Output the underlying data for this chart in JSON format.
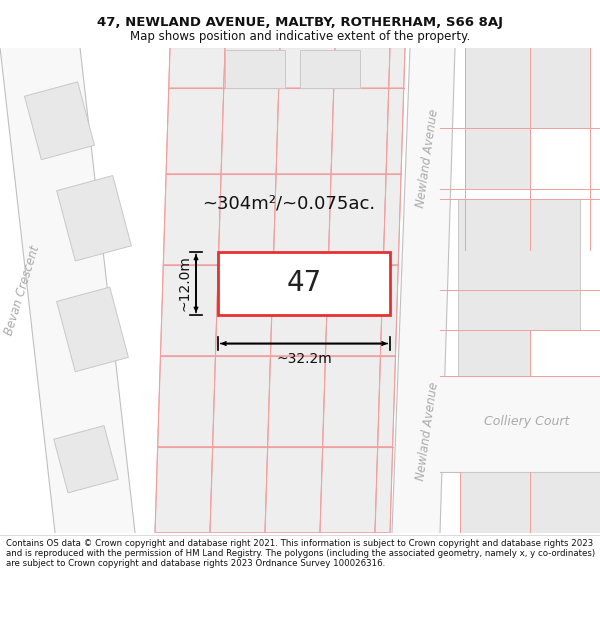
{
  "title_line1": "47, NEWLAND AVENUE, MALTBY, ROTHERHAM, S66 8AJ",
  "title_line2": "Map shows position and indicative extent of the property.",
  "footer_text": "Contains OS data © Crown copyright and database right 2021. This information is subject to Crown copyright and database rights 2023 and is reproduced with the permission of HM Land Registry. The polygons (including the associated geometry, namely x, y co-ordinates) are subject to Crown copyright and database rights 2023 Ordnance Survey 100026316.",
  "label_area": "~304m²/~0.075ac.",
  "label_number": "47",
  "label_width": "~32.2m",
  "label_height": "~12.0m",
  "street_name_newland_top": "Newland Avenue",
  "street_name_newland_bot": "Newland Avenue",
  "street_name_colliery": "Colliery Court",
  "street_name_bevan": "Bevan Crescent",
  "bg": "#ffffff",
  "bldg_fill": "#e8e8e8",
  "bldg_edge": "#c8c8c8",
  "street_line": "#f0a0a0",
  "plot_red": "#e83030",
  "road_gray": "#c0c0c0",
  "label_gray": "#a0a0a0"
}
